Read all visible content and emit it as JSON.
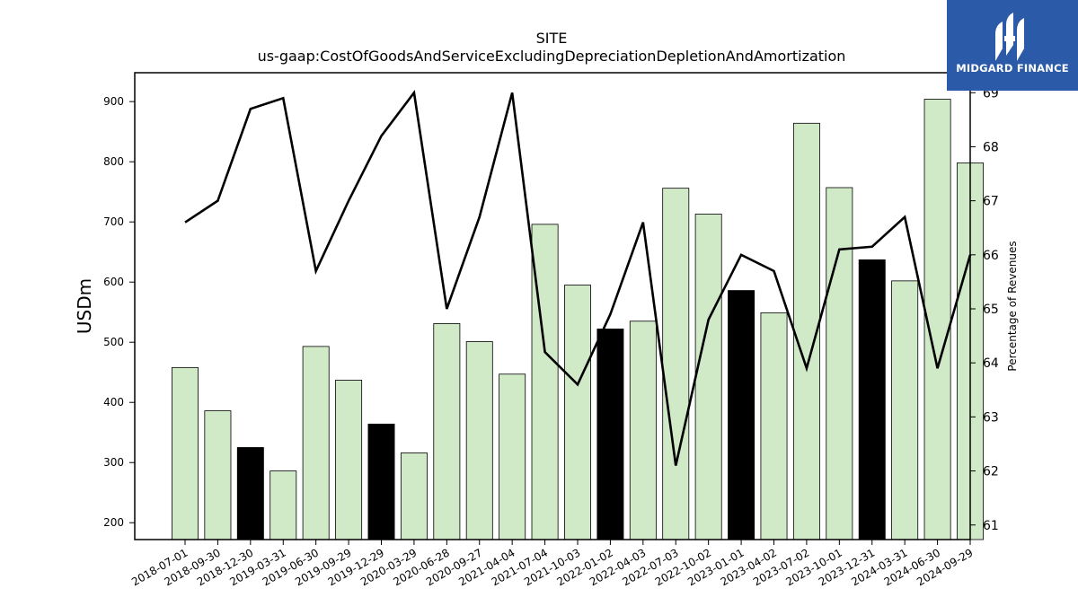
{
  "chart_data": {
    "type": "bar",
    "title": "SITE",
    "subtitle": "us-gaap:CostOfGoodsAndServiceExcludingDepreciationDepletionAndAmortization",
    "ylabel": "USDm",
    "y2label": "Percentage of Revenues",
    "ylim": [
      172,
      948
    ],
    "y2lim": [
      60.73,
      69.37
    ],
    "yticks": [
      200,
      300,
      400,
      500,
      600,
      700,
      800,
      900
    ],
    "y2ticks": [
      61,
      62,
      63,
      64,
      65,
      66,
      67,
      68,
      69
    ],
    "categories": [
      "2018-07-01",
      "2018-09-30",
      "2018-12-30",
      "2019-03-31",
      "2019-06-30",
      "2019-09-29",
      "2019-12-29",
      "2020-03-29",
      "2020-06-28",
      "2020-09-27",
      "2021-04-04",
      "2021-07-04",
      "2021-10-03",
      "2022-01-02",
      "2022-04-03",
      "2022-07-03",
      "2022-10-02",
      "2023-01-01",
      "2023-04-02",
      "2023-07-02",
      "2023-10-01",
      "2023-12-31",
      "2024-03-31",
      "2024-06-30",
      "2024-09-29"
    ],
    "series": [
      {
        "type": "bar",
        "values": [
          458,
          386,
          325,
          286,
          493,
          437,
          364,
          316,
          531,
          501,
          447,
          696,
          595,
          522,
          535,
          756,
          713,
          586,
          549,
          864,
          757,
          637,
          602,
          904,
          798
        ],
        "highlight": [
          false,
          false,
          true,
          false,
          false,
          false,
          true,
          false,
          false,
          false,
          false,
          false,
          false,
          true,
          false,
          false,
          false,
          true,
          false,
          false,
          false,
          true,
          false,
          false,
          false
        ],
        "color": "#d0eac8",
        "highlight_color": "#000000"
      },
      {
        "type": "line",
        "axis": "right",
        "values": [
          66.6,
          67.0,
          68.7,
          68.9,
          65.7,
          67.0,
          68.2,
          69.0,
          65.0,
          66.7,
          69.0,
          64.2,
          63.6,
          64.9,
          66.6,
          62.1,
          64.8,
          66.0,
          65.7,
          63.9,
          66.1,
          66.15,
          66.7,
          63.9,
          66.0
        ],
        "color": "#000000"
      }
    ],
    "grid": false
  },
  "logo": {
    "text": "MIDGARD FINANCE",
    "color": "#2b5aa8"
  }
}
